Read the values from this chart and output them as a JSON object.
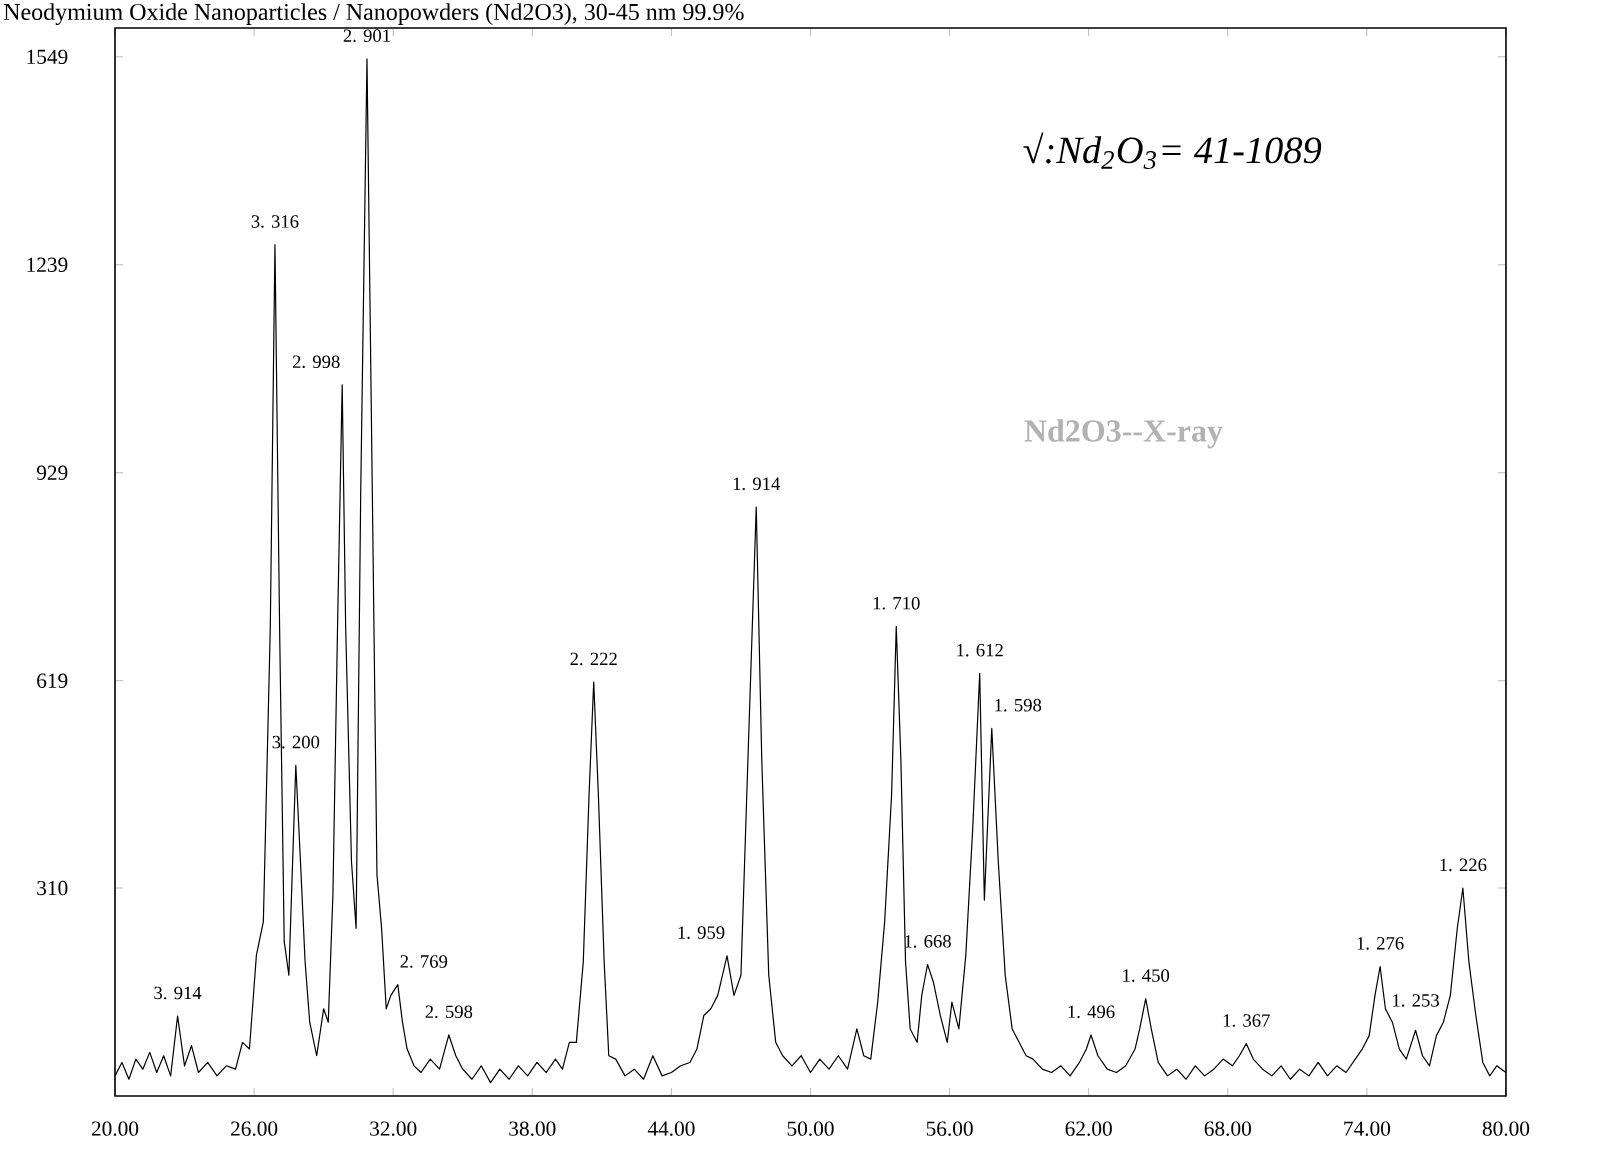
{
  "chart_data": {
    "type": "line",
    "title": "Neodymium Oxide Nanoparticles / Nanopowders (Nd2O3), 30-45 nm  99.9%",
    "xlim": [
      20,
      80
    ],
    "ylim": [
      0,
      1592
    ],
    "xticks": [
      {
        "value": 20,
        "label": "20.00"
      },
      {
        "value": 26,
        "label": "26.00"
      },
      {
        "value": 32,
        "label": "32.00"
      },
      {
        "value": 38,
        "label": "38.00"
      },
      {
        "value": 44,
        "label": "44.00"
      },
      {
        "value": 50,
        "label": "50.00"
      },
      {
        "value": 56,
        "label": "56.00"
      },
      {
        "value": 62,
        "label": "62.00"
      },
      {
        "value": 68,
        "label": "68.00"
      },
      {
        "value": 74,
        "label": "74.00"
      },
      {
        "value": 80,
        "label": "80.00"
      }
    ],
    "yticks": [
      310,
      619,
      929,
      1239,
      1549
    ],
    "series": [
      {
        "color": "#000000",
        "x": [
          20.0,
          20.3,
          20.6,
          20.9,
          21.2,
          21.5,
          21.8,
          22.1,
          22.4,
          22.7,
          23.0,
          23.3,
          23.6,
          24.0,
          24.4,
          24.8,
          25.2,
          25.5,
          25.8,
          26.1,
          26.4,
          26.7,
          26.9,
          27.1,
          27.3,
          27.5,
          27.8,
          28.0,
          28.2,
          28.4,
          28.7,
          29.0,
          29.2,
          29.4,
          29.6,
          29.8,
          29.95,
          30.2,
          30.4,
          30.6,
          30.87,
          31.1,
          31.3,
          31.5,
          31.7,
          31.9,
          32.2,
          32.4,
          32.6,
          32.9,
          33.2,
          33.6,
          34.0,
          34.4,
          34.7,
          35.0,
          35.4,
          35.8,
          36.2,
          36.6,
          37.0,
          37.4,
          37.8,
          38.2,
          38.6,
          39.0,
          39.3,
          39.6,
          39.9,
          40.2,
          40.45,
          40.65,
          40.85,
          41.1,
          41.3,
          41.6,
          42.0,
          42.4,
          42.8,
          43.2,
          43.6,
          44.0,
          44.4,
          44.8,
          45.1,
          45.4,
          45.7,
          46.0,
          46.4,
          46.7,
          47.0,
          47.3,
          47.66,
          47.9,
          48.2,
          48.5,
          48.8,
          49.2,
          49.6,
          50.0,
          50.4,
          50.8,
          51.2,
          51.6,
          52.0,
          52.3,
          52.6,
          52.9,
          53.2,
          53.5,
          53.7,
          53.9,
          54.1,
          54.3,
          54.6,
          54.8,
          55.05,
          55.3,
          55.6,
          55.9,
          56.1,
          56.4,
          56.7,
          57.0,
          57.3,
          57.5,
          57.82,
          58.1,
          58.4,
          58.7,
          59.0,
          59.3,
          59.6,
          60.0,
          60.4,
          60.8,
          61.2,
          61.6,
          61.9,
          62.1,
          62.4,
          62.8,
          63.2,
          63.6,
          64.0,
          64.2,
          64.46,
          64.7,
          65.0,
          65.4,
          65.8,
          66.2,
          66.6,
          67.0,
          67.4,
          67.8,
          68.2,
          68.5,
          68.8,
          69.1,
          69.5,
          69.9,
          70.3,
          70.7,
          71.1,
          71.5,
          71.9,
          72.3,
          72.7,
          73.1,
          73.5,
          73.8,
          74.1,
          74.35,
          74.57,
          74.8,
          75.1,
          75.4,
          75.7,
          76.1,
          76.4,
          76.7,
          77.0,
          77.3,
          77.6,
          77.9,
          78.14,
          78.4,
          78.7,
          79.0,
          79.3,
          79.6,
          80.0
        ],
        "values": [
          30,
          50,
          25,
          55,
          40,
          65,
          35,
          60,
          30,
          119,
          45,
          75,
          35,
          50,
          30,
          45,
          40,
          80,
          70,
          210,
          260,
          700,
          1269,
          700,
          230,
          180,
          493,
          350,
          200,
          110,
          60,
          130,
          110,
          300,
          700,
          1060,
          700,
          350,
          250,
          900,
          1546,
          900,
          330,
          250,
          130,
          150,
          166,
          110,
          70,
          45,
          35,
          55,
          40,
          91,
          60,
          40,
          25,
          45,
          20,
          40,
          25,
          45,
          30,
          50,
          35,
          55,
          40,
          80,
          80,
          200,
          450,
          617,
          450,
          200,
          60,
          55,
          30,
          40,
          25,
          60,
          30,
          35,
          45,
          50,
          70,
          120,
          130,
          150,
          209,
          150,
          180,
          500,
          878,
          500,
          180,
          80,
          60,
          45,
          60,
          35,
          55,
          40,
          60,
          40,
          100,
          60,
          55,
          140,
          260,
          450,
          700,
          500,
          200,
          100,
          80,
          150,
          196,
          170,
          120,
          80,
          140,
          100,
          210,
          400,
          630,
          292,
          548,
          350,
          180,
          100,
          80,
          60,
          55,
          40,
          35,
          45,
          30,
          50,
          70,
          91,
          60,
          40,
          35,
          45,
          70,
          100,
          145,
          100,
          50,
          30,
          40,
          25,
          45,
          30,
          40,
          55,
          45,
          60,
          78,
          55,
          40,
          30,
          45,
          25,
          40,
          30,
          50,
          30,
          45,
          35,
          55,
          70,
          90,
          150,
          193,
          130,
          110,
          70,
          55,
          98,
          60,
          45,
          90,
          110,
          150,
          250,
          310,
          200,
          120,
          50,
          30,
          45,
          35
        ]
      }
    ],
    "annotations": [
      {
        "text": "3. 914",
        "x": 22.7,
        "y": 119
      },
      {
        "text": "3. 316",
        "x": 26.9,
        "y": 1269
      },
      {
        "text": "3. 200",
        "x": 27.8,
        "y": 493
      },
      {
        "text": "2. 998",
        "x": 29.8,
        "y": 1060
      },
      {
        "text": "2. 901",
        "x": 30.87,
        "y": 1546
      },
      {
        "text": "2. 769",
        "x": 32.2,
        "y": 166
      },
      {
        "text": "2. 598",
        "x": 34.4,
        "y": 91
      },
      {
        "text": "2. 222",
        "x": 40.65,
        "y": 617
      },
      {
        "text": "1. 959",
        "x": 46.4,
        "y": 209
      },
      {
        "text": "1. 914",
        "x": 47.66,
        "y": 878
      },
      {
        "text": "1. 710",
        "x": 53.7,
        "y": 700
      },
      {
        "text": "1. 668",
        "x": 55.05,
        "y": 196
      },
      {
        "text": "1. 612",
        "x": 57.3,
        "y": 630
      },
      {
        "text": "1. 598",
        "x": 57.82,
        "y": 548
      },
      {
        "text": "1. 496",
        "x": 62.1,
        "y": 91
      },
      {
        "text": "1. 450",
        "x": 64.46,
        "y": 145
      },
      {
        "text": "1. 367",
        "x": 68.8,
        "y": 78
      },
      {
        "text": "1. 276",
        "x": 74.57,
        "y": 193
      },
      {
        "text": "1. 253",
        "x": 76.1,
        "y": 98
      },
      {
        "text": "1. 226",
        "x": 78.14,
        "y": 310
      },
      "√:Nd$_{2}$O$_{3}$= 41-1089",
      "Nd2O3--X-ray"
    ],
    "legend": false,
    "grid": false
  }
}
